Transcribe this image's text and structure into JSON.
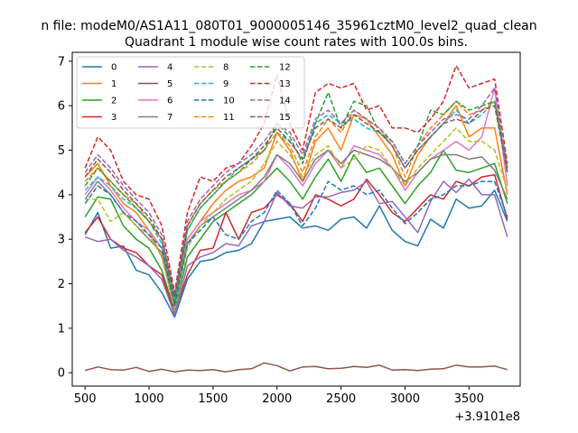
{
  "figure": {
    "suptitle": "n file: modeM0/AS1A11_080T01_9000005146_35961cztM0_level2_quad_clean"
  },
  "chart_data": {
    "type": "line",
    "title": "Quadrant 1 module wise count rates with 100.0s bins.",
    "xlabel": "",
    "ylabel": "",
    "x_offset_label": "+3.9101e8",
    "xlim": [
      400,
      3900
    ],
    "ylim": [
      -0.3,
      7.2
    ],
    "x_ticks": [
      500,
      1000,
      1500,
      2000,
      2500,
      3000,
      3500
    ],
    "y_ticks": [
      0,
      1,
      2,
      3,
      4,
      5,
      6,
      7
    ],
    "grid": false,
    "legend": {
      "location": "upper-left",
      "columns": 4
    },
    "x": [
      500,
      600,
      700,
      800,
      900,
      1000,
      1100,
      1200,
      1300,
      1400,
      1500,
      1600,
      1700,
      1800,
      1900,
      2000,
      2100,
      2200,
      2300,
      2400,
      2500,
      2600,
      2700,
      2800,
      2900,
      3000,
      3100,
      3200,
      3300,
      3400,
      3500,
      3600,
      3700,
      3800
    ],
    "series": [
      {
        "name": "0",
        "color": "#1f77b4",
        "dashed": false,
        "values": [
          3.1,
          3.6,
          2.8,
          2.85,
          2.3,
          2.2,
          1.8,
          1.25,
          2.1,
          2.5,
          2.55,
          2.7,
          2.75,
          2.9,
          3.4,
          3.45,
          3.5,
          3.25,
          3.3,
          3.2,
          3.45,
          3.5,
          3.25,
          3.75,
          3.2,
          2.95,
          2.85,
          3.45,
          3.25,
          3.9,
          3.7,
          3.75,
          4.1,
          3.4
        ]
      },
      {
        "name": "1",
        "color": "#ff7f0e",
        "dashed": false,
        "values": [
          4.4,
          4.7,
          4.2,
          3.8,
          3.6,
          3.2,
          2.6,
          1.5,
          3.0,
          3.4,
          3.8,
          4.1,
          4.3,
          4.4,
          4.6,
          5.4,
          5.0,
          4.3,
          5.2,
          5.5,
          5.0,
          5.8,
          5.7,
          5.3,
          4.9,
          4.2,
          4.9,
          5.3,
          5.6,
          6.0,
          5.3,
          5.5,
          5.5,
          4.0
        ]
      },
      {
        "name": "2",
        "color": "#2ca02c",
        "dashed": false,
        "values": [
          3.5,
          3.95,
          3.9,
          3.3,
          3.0,
          2.8,
          2.3,
          1.4,
          2.6,
          3.0,
          3.4,
          3.6,
          3.8,
          4.0,
          4.3,
          4.6,
          4.3,
          3.9,
          4.4,
          4.8,
          4.3,
          4.9,
          4.5,
          4.6,
          4.2,
          3.8,
          4.2,
          4.5,
          5.0,
          4.55,
          4.5,
          4.6,
          4.7,
          3.8
        ]
      },
      {
        "name": "3",
        "color": "#d62728",
        "dashed": false,
        "values": [
          3.15,
          3.5,
          3.0,
          2.8,
          2.7,
          2.4,
          2.2,
          1.35,
          2.2,
          2.75,
          2.8,
          3.6,
          3.0,
          3.6,
          3.7,
          4.0,
          3.8,
          3.4,
          4.0,
          3.9,
          3.75,
          3.9,
          4.35,
          4.0,
          3.6,
          3.4,
          3.7,
          4.0,
          3.9,
          4.3,
          4.2,
          4.4,
          4.45,
          3.45
        ]
      },
      {
        "name": "4",
        "color": "#9467bd",
        "dashed": false,
        "values": [
          3.05,
          2.95,
          3.0,
          2.75,
          2.6,
          2.4,
          2.1,
          1.3,
          2.4,
          2.6,
          2.7,
          2.9,
          2.85,
          3.3,
          3.4,
          4.05,
          3.75,
          3.7,
          3.95,
          3.95,
          4.05,
          4.1,
          4.3,
          3.8,
          3.85,
          3.5,
          3.15,
          3.85,
          4.3,
          4.05,
          4.35,
          4.0,
          4.0,
          3.05
        ]
      },
      {
        "name": "5",
        "color": "#8c564b",
        "dashed": false,
        "values": [
          0.05,
          0.13,
          0.07,
          0.06,
          0.12,
          0.03,
          0.08,
          0.02,
          0.06,
          0.05,
          0.07,
          0.02,
          0.07,
          0.09,
          0.22,
          0.16,
          0.04,
          0.13,
          0.14,
          0.09,
          0.1,
          0.14,
          0.12,
          0.17,
          0.06,
          0.07,
          0.05,
          0.08,
          0.09,
          0.17,
          0.13,
          0.13,
          0.15,
          0.07
        ]
      },
      {
        "name": "6",
        "color": "#e377c2",
        "dashed": false,
        "values": [
          4.0,
          4.4,
          4.1,
          3.7,
          3.4,
          3.2,
          2.8,
          1.55,
          3.0,
          3.4,
          3.6,
          3.8,
          4.0,
          4.1,
          4.3,
          4.9,
          4.6,
          4.2,
          4.7,
          5.0,
          4.6,
          5.1,
          5.0,
          4.9,
          4.6,
          4.1,
          4.5,
          4.8,
          5.0,
          5.2,
          5.0,
          5.3,
          6.4,
          4.2
        ]
      },
      {
        "name": "7",
        "color": "#7f7f7f",
        "dashed": false,
        "values": [
          3.9,
          4.3,
          4.0,
          3.6,
          3.3,
          3.0,
          2.7,
          1.5,
          2.9,
          3.3,
          3.5,
          3.7,
          3.9,
          4.1,
          4.4,
          4.9,
          4.7,
          4.3,
          4.8,
          5.0,
          4.7,
          5.0,
          4.9,
          4.8,
          4.6,
          4.3,
          4.5,
          4.8,
          4.9,
          4.9,
          4.8,
          4.85,
          4.55,
          3.9
        ]
      },
      {
        "name": "8",
        "color": "#bcbd22",
        "dashed": true,
        "values": [
          3.9,
          3.9,
          3.4,
          3.6,
          3.3,
          3.1,
          2.6,
          1.4,
          2.8,
          3.3,
          3.6,
          3.9,
          4.1,
          4.3,
          4.7,
          5.2,
          4.9,
          4.4,
          4.9,
          5.1,
          4.6,
          4.8,
          5.1,
          5.0,
          4.6,
          4.2,
          4.6,
          4.9,
          5.2,
          5.5,
          5.2,
          5.2,
          5.0,
          4.1
        ]
      },
      {
        "name": "9",
        "color": "#17becf",
        "dashed": true,
        "values": [
          4.1,
          4.4,
          4.2,
          3.9,
          3.7,
          3.4,
          2.9,
          1.6,
          3.2,
          3.7,
          4.0,
          4.3,
          4.6,
          4.8,
          5.0,
          5.4,
          5.2,
          4.8,
          5.6,
          5.8,
          5.6,
          5.7,
          5.5,
          5.4,
          5.1,
          4.6,
          5.0,
          5.3,
          5.6,
          5.9,
          5.6,
          5.8,
          6.1,
          4.5
        ]
      },
      {
        "name": "10",
        "color": "#1f77b4",
        "dashed": true,
        "values": [
          3.8,
          4.2,
          4.0,
          3.6,
          3.4,
          3.1,
          2.8,
          1.5,
          2.9,
          3.2,
          3.5,
          3.1,
          3.0,
          3.4,
          3.6,
          4.1,
          3.8,
          3.3,
          3.7,
          4.3,
          4.1,
          4.2,
          4.0,
          4.1,
          3.7,
          3.35,
          3.6,
          3.9,
          4.0,
          4.2,
          4.2,
          4.3,
          4.3,
          3.5
        ]
      },
      {
        "name": "11",
        "color": "#ff7f0e",
        "dashed": true,
        "values": [
          4.3,
          4.6,
          4.3,
          4.0,
          3.8,
          3.4,
          3.0,
          1.7,
          3.3,
          3.8,
          4.1,
          4.3,
          4.5,
          4.7,
          5.0,
          5.4,
          5.1,
          4.5,
          5.3,
          5.7,
          5.4,
          5.9,
          5.7,
          5.5,
          5.1,
          4.4,
          5.1,
          5.5,
          5.8,
          6.1,
          5.8,
          5.9,
          6.1,
          4.6
        ]
      },
      {
        "name": "12",
        "color": "#2ca02c",
        "dashed": true,
        "values": [
          4.2,
          4.6,
          4.3,
          4.0,
          3.7,
          3.4,
          3.0,
          1.6,
          3.2,
          3.7,
          4.0,
          4.3,
          4.5,
          4.8,
          5.0,
          5.6,
          5.3,
          4.7,
          5.6,
          6.3,
          5.5,
          6.1,
          6.0,
          5.4,
          5.2,
          4.7,
          5.1,
          5.9,
          5.8,
          6.1,
          5.9,
          6.0,
          6.1,
          4.6
        ]
      },
      {
        "name": "13",
        "color": "#d62728",
        "dashed": true,
        "values": [
          4.6,
          5.3,
          5.0,
          4.3,
          4.0,
          3.9,
          3.3,
          1.8,
          3.6,
          4.4,
          4.3,
          4.6,
          4.7,
          5.1,
          5.6,
          6.7,
          5.6,
          5.0,
          6.3,
          6.5,
          6.4,
          6.5,
          5.9,
          6.0,
          5.5,
          5.5,
          5.4,
          5.7,
          6.1,
          6.9,
          6.4,
          6.5,
          6.6,
          4.7
        ]
      },
      {
        "name": "14",
        "color": "#9467bd",
        "dashed": true,
        "values": [
          4.5,
          4.9,
          4.6,
          4.2,
          3.9,
          3.6,
          3.1,
          1.7,
          3.4,
          3.9,
          4.2,
          4.5,
          4.7,
          4.9,
          5.2,
          5.6,
          5.4,
          4.9,
          5.7,
          5.9,
          5.6,
          5.9,
          5.7,
          5.5,
          5.2,
          4.7,
          5.1,
          5.4,
          5.7,
          5.8,
          5.7,
          6.0,
          6.4,
          4.6
        ]
      },
      {
        "name": "15",
        "color": "#8c564b",
        "dashed": true,
        "values": [
          4.4,
          4.8,
          4.5,
          4.1,
          3.8,
          3.5,
          3.0,
          1.7,
          3.3,
          3.8,
          4.1,
          4.4,
          4.6,
          4.8,
          5.1,
          5.5,
          5.2,
          4.8,
          5.5,
          5.7,
          5.5,
          5.8,
          5.6,
          5.4,
          5.1,
          4.6,
          5.0,
          5.3,
          5.6,
          5.7,
          5.6,
          5.9,
          6.0,
          4.5
        ]
      }
    ]
  }
}
